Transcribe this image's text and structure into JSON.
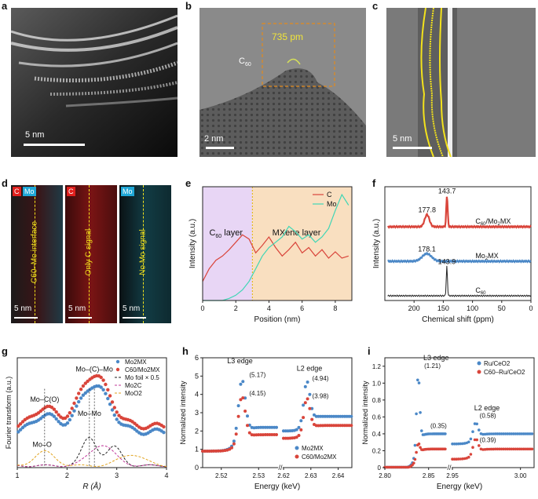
{
  "panels": {
    "a": {
      "label": "a",
      "scale": "5 nm"
    },
    "b": {
      "label": "b",
      "scale": "2 nm",
      "annotation": "735 pm",
      "molecule": "C",
      "molecule_sub": "60"
    },
    "c": {
      "label": "c",
      "scale": "5 nm"
    },
    "d": {
      "label": "d",
      "tiles": [
        {
          "tags": [
            "C",
            "Mo"
          ],
          "text": "C60–Mo interface",
          "scale": "5 nm"
        },
        {
          "tags": [
            "C"
          ],
          "text": "Only C signal",
          "scale": "5 nm"
        },
        {
          "tags": [
            "Mo"
          ],
          "text": "No Mo signal",
          "scale": "5 nm"
        }
      ],
      "colors": {
        "C": "#e0201e",
        "Mo": "#1fa7d6"
      }
    },
    "e": {
      "label": "e"
    },
    "f": {
      "label": "f"
    },
    "g": {
      "label": "g"
    },
    "h": {
      "label": "h"
    },
    "i": {
      "label": "i"
    }
  },
  "chart_data": [
    {
      "id": "e",
      "type": "line",
      "xlabel": "Position (nm)",
      "ylabel": "Intensity (a.u.)",
      "xlim": [
        0,
        9
      ],
      "xticks": [
        0,
        2,
        4,
        6,
        8
      ],
      "regions": [
        {
          "name": "C60 layer",
          "label_main": "C",
          "label_sub": "60",
          "label_rest": " layer",
          "from": 0,
          "to": 3,
          "color": "#e8d6f5"
        },
        {
          "name": "MXene layer",
          "label_main": "MXene layer",
          "from": 3,
          "to": 9,
          "color": "#f9dfc0"
        }
      ],
      "series": [
        {
          "name": "C",
          "color": "#d9453b",
          "x": [
            0,
            0.4,
            0.8,
            1.2,
            1.6,
            2.0,
            2.4,
            2.8,
            3.2,
            3.6,
            4.0,
            4.4,
            4.8,
            5.2,
            5.6,
            6.0,
            6.4,
            6.8,
            7.2,
            7.6,
            8.0,
            8.4,
            8.8
          ],
          "y": [
            0.18,
            0.3,
            0.38,
            0.42,
            0.48,
            0.55,
            0.62,
            0.58,
            0.45,
            0.52,
            0.6,
            0.5,
            0.42,
            0.48,
            0.55,
            0.45,
            0.5,
            0.42,
            0.48,
            0.4,
            0.46,
            0.4,
            0.42
          ]
        },
        {
          "name": "Mo",
          "color": "#3fd6b5",
          "x": [
            0,
            0.4,
            0.8,
            1.2,
            1.6,
            2.0,
            2.4,
            2.8,
            3.2,
            3.6,
            4.0,
            4.4,
            4.8,
            5.2,
            5.6,
            6.0,
            6.4,
            6.8,
            7.2,
            7.6,
            8.0,
            8.4,
            8.8
          ],
          "y": [
            0.0,
            0.0,
            0.0,
            0.0,
            0.02,
            0.05,
            0.1,
            0.18,
            0.3,
            0.42,
            0.5,
            0.55,
            0.6,
            0.7,
            0.65,
            0.58,
            0.62,
            0.55,
            0.6,
            0.68,
            0.85,
            1.0,
            0.9
          ]
        }
      ]
    },
    {
      "id": "f",
      "type": "line",
      "xlabel": "Chemical shift (ppm)",
      "ylabel": "Intensity (a.u.)",
      "xlim": [
        250,
        0
      ],
      "xticks": [
        200,
        150,
        100,
        50,
        0
      ],
      "peak_labels": [
        "143.7",
        "177.8",
        "178.1",
        "143.9"
      ],
      "series": [
        {
          "name": "C60/Mo2MX",
          "label_main": "C",
          "label_sub": "60",
          "label_rest": "/Mo",
          "label_sub2": "2",
          "label_end": "MX",
          "color": "#d9453b",
          "offset": 2.0,
          "peaks": [
            {
              "x": 177.8,
              "h": 0.35,
              "w": 4
            },
            {
              "x": 143.7,
              "h": 0.9,
              "w": 1.2
            }
          ]
        },
        {
          "name": "Mo2MX",
          "label_main": "Mo",
          "label_sub": "2",
          "label_rest": "MX",
          "color": "#4b88c7",
          "offset": 1.0,
          "peaks": [
            {
              "x": 178.1,
              "h": 0.22,
              "w": 8
            }
          ]
        },
        {
          "name": "C60",
          "label_main": "C",
          "label_sub": "60",
          "label_rest": "",
          "color": "#222222",
          "offset": 0.0,
          "peaks": [
            {
              "x": 143.9,
              "h": 0.85,
              "w": 1.0
            }
          ]
        }
      ]
    },
    {
      "id": "g",
      "type": "line",
      "xlabel": "R (Å)",
      "ylabel": "Fourier transform (a.u.)",
      "xlim": [
        1,
        4
      ],
      "xticks": [
        1,
        2,
        3,
        4
      ],
      "annotations": [
        "Mo–(C)–Mo",
        "Mo–C(O)",
        "Mo–Mo",
        "Mo–O"
      ],
      "legend": [
        "Mo2MX",
        "C60/Mo2MX",
        "Mo foil × 0.5",
        "Mo2C",
        "MoO2"
      ],
      "series": [
        {
          "name": "Mo2MX",
          "color": "#4b88c7",
          "style": "dots",
          "base": 0.38,
          "peaks": [
            {
              "x": 1.55,
              "h": 0.18,
              "w": 0.22
            },
            {
              "x": 2.55,
              "h": 0.5,
              "w": 0.3
            }
          ]
        },
        {
          "name": "C60/Mo2MX",
          "color": "#d9453b",
          "style": "dots",
          "base": 0.44,
          "peaks": [
            {
              "x": 1.55,
              "h": 0.2,
              "w": 0.22
            },
            {
              "x": 2.55,
              "h": 0.55,
              "w": 0.3
            }
          ]
        },
        {
          "name": "Mo foil × 0.5",
          "color": "#222222",
          "style": "dash",
          "base": 0.0,
          "peaks": [
            {
              "x": 2.45,
              "h": 0.3,
              "w": 0.15
            },
            {
              "x": 2.95,
              "h": 0.2,
              "w": 0.15
            }
          ]
        },
        {
          "name": "Mo2C",
          "color": "#c0399a",
          "style": "dash",
          "base": 0.0,
          "peaks": [
            {
              "x": 2.7,
              "h": 0.22,
              "w": 0.25
            }
          ]
        },
        {
          "name": "MoO2",
          "color": "#e0a21c",
          "style": "dash",
          "base": 0.0,
          "peaks": [
            {
              "x": 1.55,
              "h": 0.15,
              "w": 0.2
            },
            {
              "x": 3.3,
              "h": 0.12,
              "w": 0.25
            }
          ]
        }
      ]
    },
    {
      "id": "h",
      "type": "scatter",
      "xlabel": "Energy (keV)",
      "ylabel": "Normalized intensity",
      "ylim": [
        0,
        6
      ],
      "yticks": [
        0,
        1,
        2,
        3,
        4,
        5,
        6
      ],
      "segments": [
        {
          "from": 2.515,
          "to": 2.535,
          "ticks": [
            2.52,
            2.53
          ]
        },
        {
          "from": 2.62,
          "to": 2.645,
          "ticks": [
            2.62,
            2.63,
            2.64
          ]
        }
      ],
      "edge_labels": [
        "L3 edge",
        "L2 edge"
      ],
      "values": [
        "(5.17)",
        "(4.15)",
        "(4.94)",
        "(3.98)"
      ],
      "legend": [
        "Mo2MX",
        "C60/Mo2MX"
      ],
      "series": [
        {
          "name": "Mo2MX",
          "color": "#4b88c7",
          "l3": 5.17,
          "l2": 4.94,
          "post3": 2.2,
          "post2": 2.8
        },
        {
          "name": "C60/Mo2MX",
          "color": "#d9453b",
          "l3": 4.15,
          "l2": 3.98,
          "post3": 1.8,
          "post2": 2.3
        }
      ]
    },
    {
      "id": "i",
      "type": "scatter",
      "xlabel": "Energy (keV)",
      "ylabel": "Normalized intensity",
      "ylim": [
        0,
        1.3
      ],
      "yticks": [
        0,
        0.2,
        0.4,
        0.6,
        0.8,
        1.0,
        1.2
      ],
      "ytick_labels": [
        "0",
        "0.2",
        "0.4",
        "0.6",
        "0.8",
        "1.0",
        "1.2"
      ],
      "xtick_labels": [
        "2.80",
        "2.85",
        "2.95",
        "3.00"
      ],
      "edge_labels": [
        "L3 edge",
        "L2 edge"
      ],
      "values": [
        "(1.21)",
        "(0.35)",
        "(0.58)",
        "(0.39)"
      ],
      "legend": [
        "Ru/CeO2",
        "C60–Ru/CeO2"
      ],
      "series": [
        {
          "name": "Ru/CeO2",
          "color": "#4b88c7",
          "l3": 1.21,
          "l2": 0.58,
          "post": 0.4
        },
        {
          "name": "C60–Ru/CeO2",
          "color": "#d9453b",
          "l3": 0.35,
          "l2": 0.39,
          "post": 0.22
        }
      ]
    }
  ]
}
